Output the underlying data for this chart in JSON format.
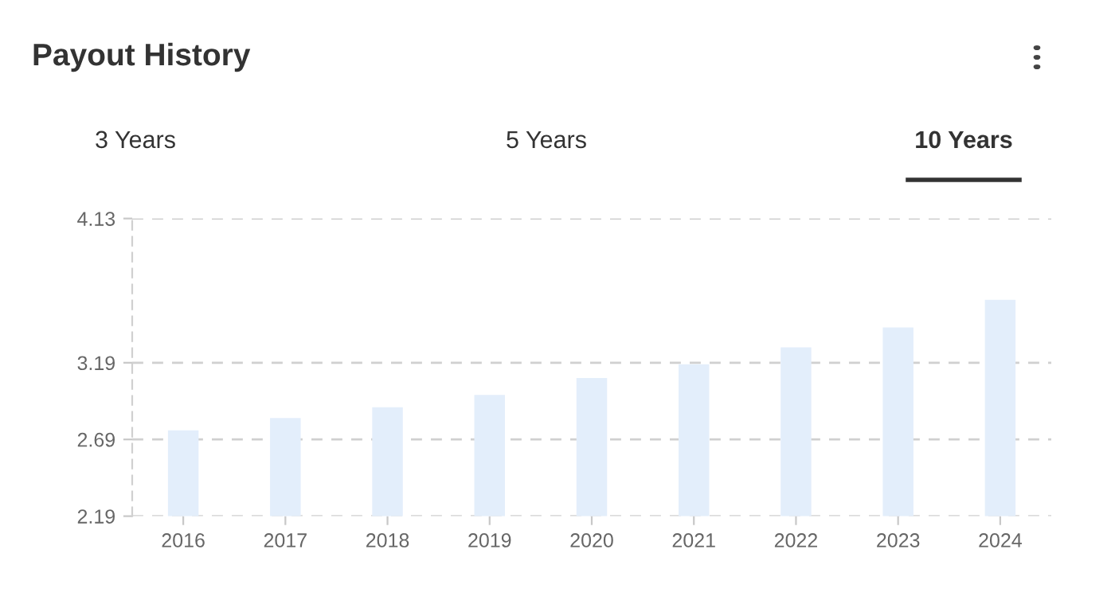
{
  "chart_data": {
    "type": "bar",
    "title": "Payout History",
    "annotations": [
      "3 Years",
      "5 Years",
      "10 Years"
    ],
    "categories": [
      "2016",
      "2017",
      "2018",
      "2019",
      "2020",
      "2021",
      "2022",
      "2023",
      "2024"
    ],
    "series": [
      {
        "color": "#e3eefb",
        "values": [
          2.75,
          2.83,
          2.9,
          2.98,
          3.09,
          3.18,
          3.29,
          3.42,
          3.6
        ]
      }
    ],
    "ylim": [
      2.19,
      4.13
    ],
    "yticks": [
      2.19,
      2.69,
      3.19,
      4.13
    ],
    "grid": "y"
  }
}
